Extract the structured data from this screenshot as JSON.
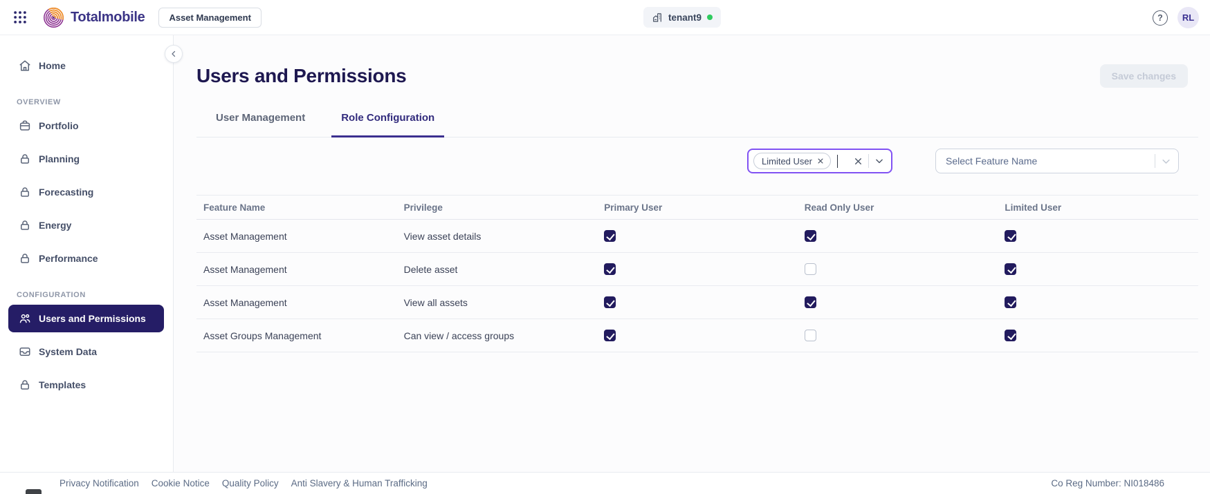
{
  "topbar": {
    "brand": "Totalmobile",
    "app_switcher_label": "Asset Management",
    "tenant": {
      "name": "tenant9",
      "status_color": "#2fcb5f"
    },
    "help_label": "?",
    "avatar_initials": "RL"
  },
  "sidebar": {
    "sections": [
      {
        "label": null,
        "items": [
          {
            "label": "Home",
            "icon": "home-icon",
            "active": false
          }
        ]
      },
      {
        "label": "OVERVIEW",
        "items": [
          {
            "label": "Portfolio",
            "icon": "briefcase-icon",
            "active": false
          },
          {
            "label": "Planning",
            "icon": "lock-icon",
            "active": false
          },
          {
            "label": "Forecasting",
            "icon": "lock-icon",
            "active": false
          },
          {
            "label": "Energy",
            "icon": "lock-icon",
            "active": false
          },
          {
            "label": "Performance",
            "icon": "lock-icon",
            "active": false
          }
        ]
      },
      {
        "label": "CONFIGURATION",
        "items": [
          {
            "label": "Users and Permissions",
            "icon": "users-icon",
            "active": true
          },
          {
            "label": "System Data",
            "icon": "inbox-icon",
            "active": false
          },
          {
            "label": "Templates",
            "icon": "lock-icon",
            "active": false
          }
        ]
      }
    ]
  },
  "main": {
    "title": "Users and Permissions",
    "save_button_label": "Save changes",
    "tabs": [
      {
        "label": "User Management",
        "active": false
      },
      {
        "label": "Role Configuration",
        "active": true
      }
    ],
    "role_filter": {
      "chips": [
        "Limited User"
      ]
    },
    "feature_filter": {
      "placeholder": "Select Feature Name"
    },
    "table": {
      "columns": [
        "Feature Name",
        "Privilege",
        "Primary User",
        "Read Only User",
        "Limited User"
      ],
      "rows": [
        {
          "feature": "Asset Management",
          "privilege": "View asset details",
          "primary_user": true,
          "read_only_user": true,
          "limited_user": true
        },
        {
          "feature": "Asset Management",
          "privilege": "Delete asset",
          "primary_user": true,
          "read_only_user": false,
          "limited_user": true
        },
        {
          "feature": "Asset Management",
          "privilege": "View all assets",
          "primary_user": true,
          "read_only_user": true,
          "limited_user": true
        },
        {
          "feature": "Asset Groups Management",
          "privilege": "Can view / access groups",
          "primary_user": true,
          "read_only_user": false,
          "limited_user": true
        }
      ]
    }
  },
  "footer": {
    "links": [
      "Privacy Notification",
      "Cookie Notice",
      "Quality Policy",
      "Anti Slavery & Human Trafficking"
    ],
    "co_reg": "Co Reg Number: NI018486"
  },
  "colors": {
    "accent_purple": "#8152f3",
    "brand_navy": "#251d66",
    "checkbox_navy": "#221b5e",
    "tab_active": "#322b7d",
    "status_green": "#2fcb5f",
    "logo_orange": "#f7941d",
    "logo_purple": "#8b3090"
  }
}
